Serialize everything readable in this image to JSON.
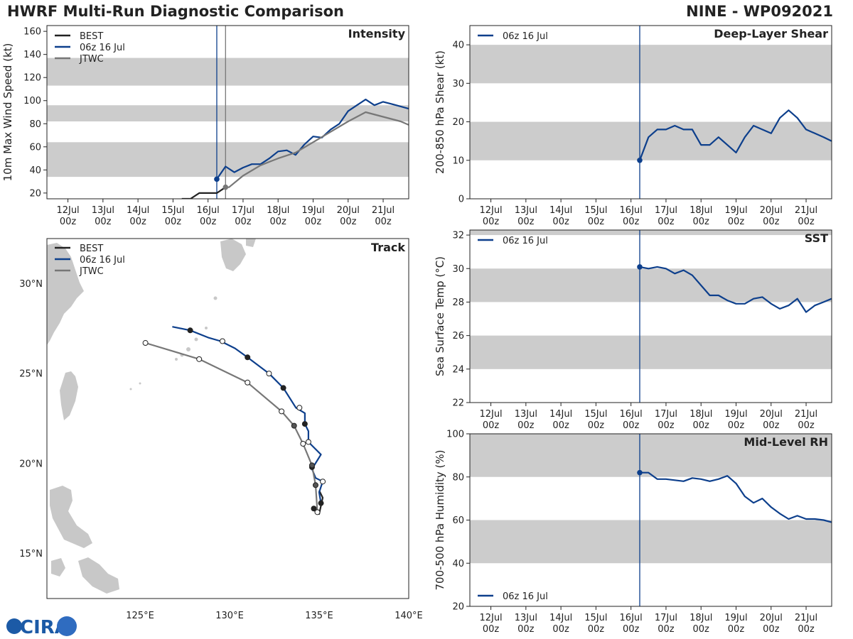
{
  "header": {
    "title_left": "HWRF Multi-Run Diagnostic Comparison",
    "title_right": "NINE - WP092021"
  },
  "logo": {
    "text": "CIRA"
  },
  "time_axis": {
    "ticks": [
      {
        "day": 12,
        "top": "12Jul",
        "bottom": "00z"
      },
      {
        "day": 13,
        "top": "13Jul",
        "bottom": "00z"
      },
      {
        "day": 14,
        "top": "14Jul",
        "bottom": "00z"
      },
      {
        "day": 15,
        "top": "15Jul",
        "bottom": "00z"
      },
      {
        "day": 16,
        "top": "16Jul",
        "bottom": "00z"
      },
      {
        "day": 17,
        "top": "17Jul",
        "bottom": "00z"
      },
      {
        "day": 18,
        "top": "18Jul",
        "bottom": "00z"
      },
      {
        "day": 19,
        "top": "19Jul",
        "bottom": "00z"
      },
      {
        "day": 20,
        "top": "20Jul",
        "bottom": "00z"
      },
      {
        "day": 21,
        "top": "21Jul",
        "bottom": "00z"
      }
    ]
  },
  "colors": {
    "best": "#222222",
    "hwrf": "#0d3f8c",
    "jtwc": "#777777",
    "band": "#cccccc"
  },
  "chart_data": [
    {
      "id": "intensity",
      "type": "line",
      "title": "Intensity",
      "ylabel": "10m Max Wind Speed (kt)",
      "xlim": [
        11.4,
        21.73
      ],
      "ylim": [
        15,
        165
      ],
      "yticks": [
        20,
        40,
        60,
        80,
        100,
        120,
        140,
        160
      ],
      "bands": [
        [
          34,
          64
        ],
        [
          82,
          96
        ],
        [
          113,
          137
        ]
      ],
      "vlines": [
        {
          "x": 16.25,
          "color": "hwrf"
        },
        {
          "x": 16.5,
          "color": "jtwc"
        }
      ],
      "legend": [
        {
          "label": "BEST",
          "color": "best"
        },
        {
          "label": "06z 16 Jul",
          "color": "hwrf"
        },
        {
          "label": "JTWC",
          "color": "jtwc"
        }
      ],
      "series": [
        {
          "name": "BEST",
          "color": "best",
          "x": [
            15.25,
            15.5,
            15.75,
            16.0,
            16.25,
            16.5
          ],
          "y": [
            15,
            15,
            20,
            20,
            20,
            25
          ]
        },
        {
          "name": "06z 16 Jul",
          "color": "hwrf",
          "marker_first": true,
          "x": [
            16.25,
            16.5,
            16.75,
            17.0,
            17.25,
            17.5,
            17.75,
            18.0,
            18.25,
            18.5,
            18.75,
            19.0,
            19.25,
            19.5,
            19.75,
            20.0,
            20.25,
            20.5,
            20.75,
            21.0,
            21.25,
            21.5,
            21.73
          ],
          "y": [
            32,
            43,
            38,
            42,
            45,
            45,
            50,
            56,
            57,
            53,
            62,
            69,
            68,
            75,
            80,
            91,
            96,
            101,
            96,
            99,
            97,
            95,
            93
          ]
        },
        {
          "name": "JTWC",
          "color": "jtwc",
          "marker_first": true,
          "x": [
            16.5,
            16.6,
            17.0,
            17.5,
            18.0,
            18.5,
            19.0,
            19.5,
            20.0,
            20.5,
            21.0,
            21.5,
            21.73
          ],
          "y": [
            25,
            25,
            35,
            44,
            50,
            55,
            64,
            73,
            82,
            90,
            86,
            82,
            79
          ]
        }
      ]
    },
    {
      "id": "shear",
      "type": "line",
      "title": "Deep-Layer Shear",
      "ylabel": "200-850 hPa Shear (kt)",
      "xlim": [
        11.4,
        21.73
      ],
      "ylim": [
        0,
        45
      ],
      "yticks": [
        0,
        10,
        20,
        30,
        40
      ],
      "bands": [
        [
          10,
          20
        ],
        [
          30,
          40
        ]
      ],
      "vlines": [
        {
          "x": 16.25,
          "color": "hwrf"
        }
      ],
      "legend": [
        {
          "label": "06z 16 Jul",
          "color": "hwrf"
        }
      ],
      "series": [
        {
          "name": "06z 16 Jul",
          "color": "hwrf",
          "marker_first": true,
          "x": [
            16.25,
            16.5,
            16.75,
            17.0,
            17.25,
            17.5,
            17.75,
            18.0,
            18.25,
            18.5,
            18.75,
            19.0,
            19.25,
            19.5,
            19.75,
            20.0,
            20.25,
            20.5,
            20.75,
            21.0,
            21.25,
            21.5,
            21.73
          ],
          "y": [
            10,
            16,
            18,
            18,
            19,
            18,
            18,
            14,
            14,
            16,
            14,
            12,
            16,
            19,
            18,
            17,
            21,
            23,
            21,
            18,
            17,
            16,
            15
          ]
        }
      ]
    },
    {
      "id": "sst",
      "type": "line",
      "title": "SST",
      "ylabel": "Sea Surface Temp (°C)",
      "xlim": [
        11.4,
        21.73
      ],
      "ylim": [
        22,
        32.3
      ],
      "yticks": [
        22,
        24,
        26,
        28,
        30,
        32
      ],
      "bands": [
        [
          24,
          26
        ],
        [
          28,
          30
        ],
        [
          32,
          32.3
        ]
      ],
      "vlines": [
        {
          "x": 16.25,
          "color": "hwrf"
        }
      ],
      "legend": [
        {
          "label": "06z 16 Jul",
          "color": "hwrf"
        }
      ],
      "series": [
        {
          "name": "06z 16 Jul",
          "color": "hwrf",
          "marker_first": true,
          "x": [
            16.25,
            16.5,
            16.75,
            17.0,
            17.25,
            17.5,
            17.75,
            18.0,
            18.25,
            18.5,
            18.75,
            19.0,
            19.25,
            19.5,
            19.75,
            20.0,
            20.25,
            20.5,
            20.75,
            21.0,
            21.25,
            21.5,
            21.73
          ],
          "y": [
            30.1,
            30.0,
            30.1,
            30.0,
            29.7,
            29.9,
            29.6,
            29.0,
            28.4,
            28.4,
            28.1,
            27.9,
            27.9,
            28.2,
            28.3,
            27.9,
            27.6,
            27.8,
            28.2,
            27.4,
            27.8,
            28.0,
            28.2
          ]
        }
      ]
    },
    {
      "id": "rh",
      "type": "line",
      "title": "Mid-Level RH",
      "ylabel": "700-500 hPa Humidity (%)",
      "xlim": [
        11.4,
        21.73
      ],
      "ylim": [
        20,
        100
      ],
      "yticks": [
        20,
        40,
        60,
        80,
        100
      ],
      "bands": [
        [
          40,
          60
        ],
        [
          80,
          100
        ]
      ],
      "vlines": [
        {
          "x": 16.25,
          "color": "hwrf"
        }
      ],
      "legend": [
        {
          "label": "06z 16 Jul",
          "color": "hwrf"
        }
      ],
      "series": [
        {
          "name": "06z 16 Jul",
          "color": "hwrf",
          "marker_first": true,
          "x": [
            16.25,
            16.5,
            16.75,
            17.0,
            17.25,
            17.5,
            17.75,
            18.0,
            18.25,
            18.5,
            18.75,
            19.0,
            19.25,
            19.5,
            19.75,
            20.0,
            20.25,
            20.5,
            20.75,
            21.0,
            21.25,
            21.5,
            21.73
          ],
          "y": [
            82,
            82,
            79,
            79,
            78.5,
            78,
            79.5,
            79,
            78,
            79,
            80.5,
            77,
            71,
            68,
            70,
            66,
            63,
            60.5,
            62,
            60.5,
            60.5,
            60,
            59
          ]
        }
      ]
    },
    {
      "id": "track",
      "type": "scatter",
      "title": "Track",
      "xlim": [
        119.8,
        140
      ],
      "ylim": [
        12.5,
        32.5
      ],
      "xticks": [
        {
          "v": 125,
          "label": "125°E"
        },
        {
          "v": 130,
          "label": "130°E"
        },
        {
          "v": 135,
          "label": "135°E"
        },
        {
          "v": 140,
          "label": "140°E"
        }
      ],
      "yticks": [
        {
          "v": 15,
          "label": "15°N"
        },
        {
          "v": 20,
          "label": "20°N"
        },
        {
          "v": 25,
          "label": "25°N"
        },
        {
          "v": 30,
          "label": "30°N"
        }
      ],
      "legend": [
        {
          "label": "BEST",
          "color": "best"
        },
        {
          "label": "06z 16 Jul",
          "color": "hwrf"
        },
        {
          "label": "JTWC",
          "color": "jtwc"
        }
      ],
      "series": [
        {
          "name": "BEST",
          "color": "best",
          "lon": [
            134.7,
            134.8,
            135.0,
            135.2,
            135.0
          ],
          "lat": [
            17.5,
            17.3,
            17.2,
            18.1,
            18.5
          ],
          "markers": [
            {
              "lon": 134.7,
              "lat": 17.5,
              "fill": true
            }
          ]
        },
        {
          "name": "06z 16 Jul",
          "color": "hwrf",
          "lon": [
            135.1,
            135.0,
            135.2,
            134.8,
            134.6,
            135.1,
            134.9,
            134.4,
            134.4,
            134.2,
            134.2,
            133.7,
            133.0,
            132.2,
            131.0,
            130.3,
            129.5,
            128.8,
            127.8,
            126.8
          ],
          "lat": [
            17.8,
            18.4,
            19.0,
            19.2,
            19.7,
            20.5,
            20.7,
            21.2,
            21.8,
            22.2,
            22.8,
            23.1,
            24.2,
            25.0,
            25.9,
            26.4,
            26.8,
            27.0,
            27.4,
            27.6
          ],
          "markers": [
            {
              "lon": 135.1,
              "lat": 17.8,
              "fill": true
            },
            {
              "lon": 135.2,
              "lat": 19.0,
              "fill": false
            },
            {
              "lon": 134.6,
              "lat": 19.8,
              "fill": true
            },
            {
              "lon": 134.4,
              "lat": 21.2,
              "fill": false
            },
            {
              "lon": 134.2,
              "lat": 22.2,
              "fill": true
            },
            {
              "lon": 133.9,
              "lat": 23.1,
              "fill": false
            },
            {
              "lon": 133.0,
              "lat": 24.2,
              "fill": true
            },
            {
              "lon": 132.2,
              "lat": 25.0,
              "fill": false
            },
            {
              "lon": 131.0,
              "lat": 25.9,
              "fill": true
            },
            {
              "lon": 129.6,
              "lat": 26.8,
              "fill": false
            },
            {
              "lon": 127.8,
              "lat": 27.4,
              "fill": true
            }
          ]
        },
        {
          "name": "JTWC",
          "color": "jtwc",
          "lon": [
            134.9,
            134.8,
            134.6,
            134.1,
            133.6,
            132.9,
            131.0,
            128.3,
            125.3
          ],
          "lat": [
            17.3,
            18.8,
            19.9,
            21.1,
            22.1,
            22.9,
            24.5,
            25.8,
            26.7
          ],
          "markers": [
            {
              "lon": 134.9,
              "lat": 17.3,
              "fill": false
            },
            {
              "lon": 134.8,
              "lat": 18.8,
              "fill": true
            },
            {
              "lon": 134.6,
              "lat": 19.9,
              "fill": true
            },
            {
              "lon": 134.1,
              "lat": 21.1,
              "fill": false
            },
            {
              "lon": 133.6,
              "lat": 22.1,
              "fill": true
            },
            {
              "lon": 132.9,
              "lat": 22.9,
              "fill": false
            },
            {
              "lon": 131.0,
              "lat": 24.5,
              "fill": false
            },
            {
              "lon": 128.3,
              "lat": 25.8,
              "fill": false
            },
            {
              "lon": 125.3,
              "lat": 26.7,
              "fill": false
            }
          ]
        }
      ]
    }
  ]
}
